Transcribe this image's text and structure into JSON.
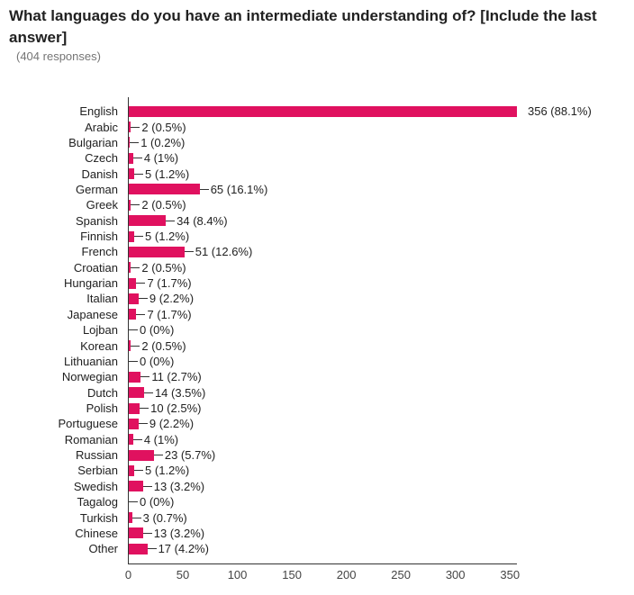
{
  "header": {
    "title": "What languages do you have an intermediate understanding of? [Include the last answer]",
    "responses": "(404 responses)"
  },
  "chart_data": {
    "type": "bar",
    "orientation": "horizontal",
    "title": "What languages do you have an intermediate understanding of? [Include the last answer]",
    "subtitle": "(404 responses)",
    "xlabel": "",
    "ylabel": "",
    "xlim": [
      0,
      356
    ],
    "x_ticks": [
      0,
      50,
      100,
      150,
      200,
      250,
      300,
      350
    ],
    "grid": false,
    "legend": false,
    "bar_color": "#E0115F",
    "axis_color": "#333333",
    "categories": [
      "English",
      "Arabic",
      "Bulgarian",
      "Czech",
      "Danish",
      "German",
      "Greek",
      "Spanish",
      "Finnish",
      "French",
      "Croatian",
      "Hungarian",
      "Italian",
      "Japanese",
      "Lojban",
      "Korean",
      "Lithuanian",
      "Norwegian",
      "Dutch",
      "Polish",
      "Portuguese",
      "Romanian",
      "Russian",
      "Serbian",
      "Swedish",
      "Tagalog",
      "Turkish",
      "Chinese",
      "Other"
    ],
    "values": [
      356,
      2,
      1,
      4,
      5,
      65,
      2,
      34,
      5,
      51,
      2,
      7,
      9,
      7,
      0,
      2,
      0,
      11,
      14,
      10,
      9,
      4,
      23,
      5,
      13,
      0,
      3,
      13,
      17
    ],
    "annotations": [
      "356 (88.1%)",
      "2 (0.5%)",
      "1 (0.2%)",
      "4 (1%)",
      "5 (1.2%)",
      "65 (16.1%)",
      "2 (0.5%)",
      "34 (8.4%)",
      "5 (1.2%)",
      "51 (12.6%)",
      "2 (0.5%)",
      "7 (1.7%)",
      "9 (2.2%)",
      "7 (1.7%)",
      "0 (0%)",
      "2 (0.5%)",
      "0 (0%)",
      "11 (2.7%)",
      "14 (3.5%)",
      "10 (2.5%)",
      "9 (2.2%)",
      "4 (1%)",
      "23 (5.7%)",
      "5 (1.2%)",
      "13 (3.2%)",
      "0 (0%)",
      "3 (0.7%)",
      "13 (3.2%)",
      "17 (4.2%)"
    ]
  }
}
